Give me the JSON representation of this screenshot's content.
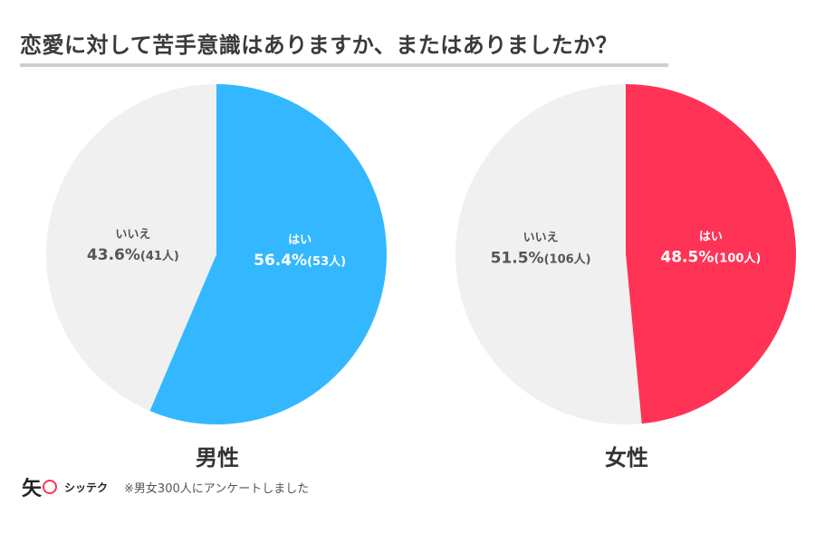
{
  "title": "恋愛に対して苦手意識はありますか、またはありましたか？",
  "chart_data": [
    {
      "type": "pie",
      "caption": "男性",
      "slices": [
        {
          "label": "はい",
          "percent": 56.4,
          "count_label": "(53人)",
          "color": "#33b8ff",
          "text_color": "#ffffff"
        },
        {
          "label": "いいえ",
          "percent": 43.6,
          "count_label": "(41人)",
          "color": "#f0f0f0",
          "text_color": "#555555"
        }
      ]
    },
    {
      "type": "pie",
      "caption": "女性",
      "slices": [
        {
          "label": "はい",
          "percent": 48.5,
          "count_label": "(100人)",
          "color": "#ff3355",
          "text_color": "#ffffff"
        },
        {
          "label": "いいえ",
          "percent": 51.5,
          "count_label": "(106人)",
          "color": "#f0f0f0",
          "text_color": "#555555"
        }
      ]
    }
  ],
  "footer": {
    "logo_char": "矢",
    "logo_text": "シッテク",
    "note": "※男女300人にアンケートしました"
  }
}
